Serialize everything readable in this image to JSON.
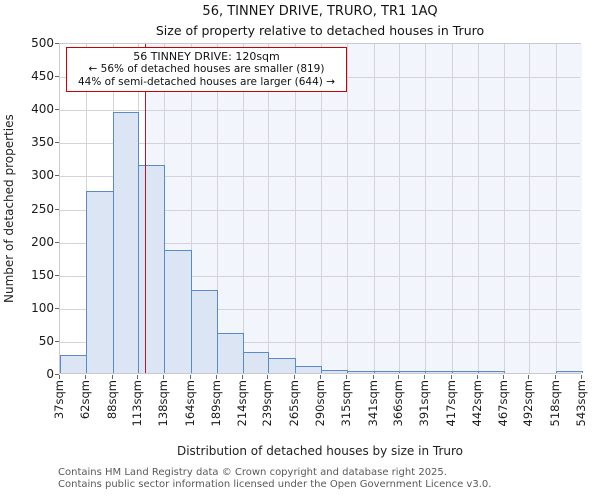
{
  "title": "56, TINNEY DRIVE, TRURO, TR1 1AQ",
  "subtitle": "Size of property relative to detached houses in Truro",
  "annotation": {
    "line1": "56 TINNEY DRIVE: 120sqm",
    "line2": "← 56% of detached houses are smaller (819)",
    "line3": "44% of semi-detached houses are larger (644) →"
  },
  "chart_data": {
    "type": "bar",
    "title": "56, TINNEY DRIVE, TRURO, TR1 1AQ",
    "subtitle": "Size of property relative to detached houses in Truro",
    "xlabel": "Distribution of detached houses by size in Truro",
    "ylabel": "Number of detached properties",
    "bin_edges_sqm": [
      37,
      62,
      88,
      113,
      138,
      164,
      189,
      214,
      239,
      265,
      290,
      315,
      341,
      366,
      391,
      417,
      442,
      467,
      492,
      518,
      543
    ],
    "x_tick_labels": [
      "37sqm",
      "62sqm",
      "88sqm",
      "113sqm",
      "138sqm",
      "164sqm",
      "189sqm",
      "214sqm",
      "239sqm",
      "265sqm",
      "290sqm",
      "315sqm",
      "341sqm",
      "366sqm",
      "391sqm",
      "417sqm",
      "442sqm",
      "467sqm",
      "492sqm",
      "518sqm",
      "543sqm"
    ],
    "values": [
      28,
      275,
      395,
      315,
      186,
      125,
      60,
      32,
      23,
      10,
      5,
      2,
      1,
      1,
      1,
      1,
      1,
      0,
      0,
      1
    ],
    "y_ticks": [
      0,
      50,
      100,
      150,
      200,
      250,
      300,
      350,
      400,
      450,
      500
    ],
    "ylim": [
      0,
      500
    ],
    "xlim_sqm": [
      37,
      543
    ],
    "marker": {
      "value_sqm": 120,
      "label": "56 TINNEY DRIVE: 120sqm"
    },
    "shaded_region": {
      "from_sqm": 120,
      "to_sqm": 543
    },
    "grid": true,
    "legend": false
  },
  "footer": {
    "line1": "Contains HM Land Registry data © Crown copyright and database right 2025.",
    "line2": "Contains public sector information licensed under the Open Government Licence v3.0."
  },
  "colors": {
    "bar_fill": "#dbe5f4",
    "bar_border": "#5b8ac9",
    "marker_line": "#b01c22",
    "annotation_border": "#cc0000",
    "shade": "#f2f6fc",
    "gridline": "#d4d4d8",
    "footer_text": "#595959"
  }
}
